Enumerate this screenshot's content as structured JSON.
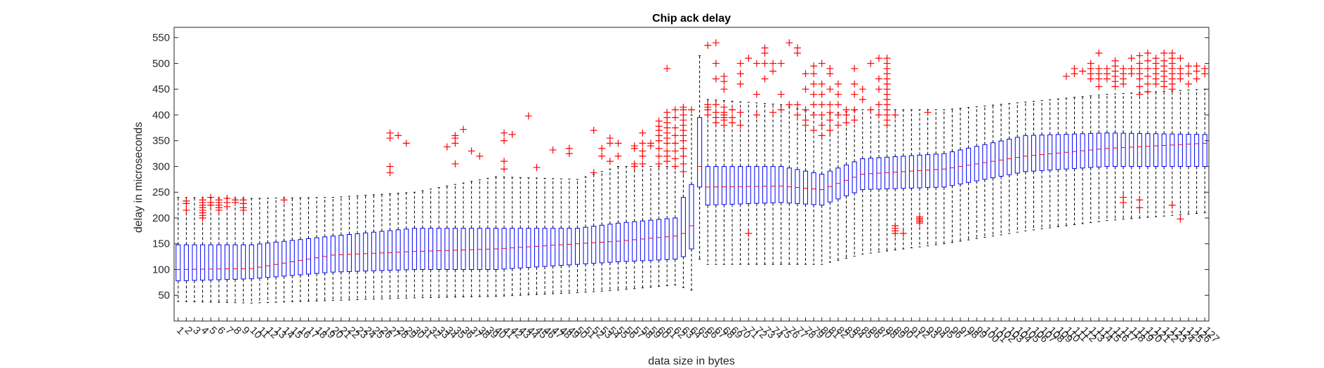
{
  "chart_data": {
    "type": "box",
    "title": "Chip ack delay",
    "xlabel": "data size in bytes",
    "ylabel": "delay in microseconds",
    "ylim": [
      0,
      570
    ],
    "yticks": [
      50,
      100,
      150,
      200,
      250,
      300,
      350,
      400,
      450,
      500,
      550
    ],
    "categories_count": 127,
    "categories_first": 1,
    "colors": {
      "box": "#0000ff",
      "median": "#ff0000",
      "whisker": "#000000",
      "outlier": "#ff0000",
      "axis": "#262626"
    },
    "control_points": [
      {
        "x": 1,
        "q1": 78,
        "median": 100,
        "q3": 148,
        "lo": 38,
        "hi": 240
      },
      {
        "x": 10,
        "q1": 82,
        "median": 102,
        "q3": 148,
        "lo": 35,
        "hi": 238
      },
      {
        "x": 20,
        "q1": 95,
        "median": 128,
        "q3": 165,
        "lo": 40,
        "hi": 240
      },
      {
        "x": 30,
        "q1": 100,
        "median": 135,
        "q3": 180,
        "lo": 45,
        "hi": 250
      },
      {
        "x": 40,
        "q1": 100,
        "median": 140,
        "q3": 180,
        "lo": 48,
        "hi": 280
      },
      {
        "x": 50,
        "q1": 110,
        "median": 150,
        "q3": 180,
        "lo": 55,
        "hi": 275
      },
      {
        "x": 55,
        "q1": 115,
        "median": 155,
        "q3": 190,
        "lo": 60,
        "hi": 300
      },
      {
        "x": 62,
        "q1": 120,
        "median": 165,
        "q3": 200,
        "lo": 70,
        "hi": 300
      },
      {
        "x": 63,
        "q1": 125,
        "median": 170,
        "q3": 240,
        "lo": 65,
        "hi": 380
      },
      {
        "x": 64,
        "q1": 140,
        "median": 185,
        "q3": 265,
        "lo": 60,
        "hi": 400
      },
      {
        "x": 65,
        "q1": 260,
        "median": 300,
        "q3": 395,
        "lo": 120,
        "hi": 515
      },
      {
        "x": 66,
        "q1": 225,
        "median": 260,
        "q3": 300,
        "lo": 110,
        "hi": 430
      },
      {
        "x": 75,
        "q1": 230,
        "median": 262,
        "q3": 300,
        "lo": 110,
        "hi": 420
      },
      {
        "x": 80,
        "q1": 225,
        "median": 255,
        "q3": 285,
        "lo": 110,
        "hi": 400
      },
      {
        "x": 85,
        "q1": 255,
        "median": 285,
        "q3": 315,
        "lo": 130,
        "hi": 410
      },
      {
        "x": 95,
        "q1": 260,
        "median": 295,
        "q3": 325,
        "lo": 150,
        "hi": 410
      },
      {
        "x": 105,
        "q1": 290,
        "median": 320,
        "q3": 360,
        "lo": 175,
        "hi": 425
      },
      {
        "x": 115,
        "q1": 300,
        "median": 335,
        "q3": 365,
        "lo": 195,
        "hi": 440
      },
      {
        "x": 127,
        "q1": 300,
        "median": 345,
        "q3": 362,
        "lo": 210,
        "hi": 450
      }
    ],
    "outliers": [
      {
        "x": 2,
        "values": [
          215,
          228,
          233
        ]
      },
      {
        "x": 4,
        "values": [
          200,
          205,
          210,
          215,
          220,
          225,
          230,
          235
        ]
      },
      {
        "x": 5,
        "values": [
          225,
          230,
          240
        ]
      },
      {
        "x": 6,
        "values": [
          215,
          220,
          225,
          230,
          235
        ]
      },
      {
        "x": 7,
        "values": [
          222,
          230,
          238
        ]
      },
      {
        "x": 8,
        "values": [
          230,
          235
        ]
      },
      {
        "x": 9,
        "values": [
          215,
          220,
          228,
          235
        ]
      },
      {
        "x": 14,
        "values": [
          235
        ]
      },
      {
        "x": 27,
        "values": [
          288,
          300,
          355,
          365
        ]
      },
      {
        "x": 28,
        "values": [
          360
        ]
      },
      {
        "x": 29,
        "values": [
          345
        ]
      },
      {
        "x": 34,
        "values": [
          338
        ]
      },
      {
        "x": 35,
        "values": [
          305,
          345,
          355,
          360
        ]
      },
      {
        "x": 36,
        "values": [
          372
        ]
      },
      {
        "x": 37,
        "values": [
          330
        ]
      },
      {
        "x": 38,
        "values": [
          320
        ]
      },
      {
        "x": 41,
        "values": [
          295,
          310,
          350,
          365
        ]
      },
      {
        "x": 42,
        "values": [
          362
        ]
      },
      {
        "x": 44,
        "values": [
          398
        ]
      },
      {
        "x": 45,
        "values": [
          298
        ]
      },
      {
        "x": 47,
        "values": [
          332
        ]
      },
      {
        "x": 49,
        "values": [
          325,
          335
        ]
      },
      {
        "x": 52,
        "values": [
          288,
          370
        ]
      },
      {
        "x": 53,
        "values": [
          320,
          335
        ]
      },
      {
        "x": 54,
        "values": [
          310,
          345,
          355
        ]
      },
      {
        "x": 55,
        "values": [
          320,
          345
        ]
      },
      {
        "x": 57,
        "values": [
          300,
          305,
          335,
          340
        ]
      },
      {
        "x": 58,
        "values": [
          305,
          320,
          330,
          345,
          365
        ]
      },
      {
        "x": 59,
        "values": [
          340,
          345
        ]
      },
      {
        "x": 60,
        "values": [
          305,
          320,
          335,
          350,
          360,
          370,
          378,
          388
        ]
      },
      {
        "x": 61,
        "values": [
          310,
          320,
          330,
          345,
          355,
          365,
          375,
          385,
          395,
          405,
          490
        ]
      },
      {
        "x": 62,
        "values": [
          300,
          315,
          330,
          345,
          360,
          375,
          395,
          410
        ]
      },
      {
        "x": 63,
        "values": [
          290,
          305,
          320,
          335,
          350,
          360,
          370,
          380,
          390,
          400,
          410,
          415
        ]
      },
      {
        "x": 64,
        "values": [
          410
        ]
      },
      {
        "x": 66,
        "values": [
          400,
          410,
          415,
          420,
          535
        ]
      },
      {
        "x": 67,
        "values": [
          385,
          395,
          405,
          420,
          470,
          500,
          540
        ]
      },
      {
        "x": 68,
        "values": [
          380,
          390,
          395,
          400,
          405,
          415,
          450,
          465,
          475
        ]
      },
      {
        "x": 69,
        "values": [
          385,
          395,
          410
        ]
      },
      {
        "x": 70,
        "values": [
          380,
          405,
          460,
          480,
          500
        ]
      },
      {
        "x": 71,
        "values": [
          170,
          510
        ]
      },
      {
        "x": 72,
        "values": [
          400,
          440,
          500
        ]
      },
      {
        "x": 73,
        "values": [
          470,
          500,
          520,
          530
        ]
      },
      {
        "x": 74,
        "values": [
          405,
          485,
          500
        ]
      },
      {
        "x": 75,
        "values": [
          410,
          440,
          500
        ]
      },
      {
        "x": 76,
        "values": [
          420,
          540
        ]
      },
      {
        "x": 77,
        "values": [
          400,
          420,
          520,
          530
        ]
      },
      {
        "x": 78,
        "values": [
          380,
          390,
          410,
          450,
          480
        ]
      },
      {
        "x": 79,
        "values": [
          370,
          400,
          420,
          440,
          460,
          480,
          495
        ]
      },
      {
        "x": 80,
        "values": [
          360,
          380,
          400,
          420,
          440,
          460,
          500
        ]
      },
      {
        "x": 81,
        "values": [
          370,
          390,
          405,
          420,
          450,
          480,
          490
        ]
      },
      {
        "x": 82,
        "values": [
          380,
          400,
          420,
          440,
          460
        ]
      },
      {
        "x": 83,
        "values": [
          385,
          400,
          410
        ]
      },
      {
        "x": 84,
        "values": [
          390,
          410,
          440,
          460,
          490
        ]
      },
      {
        "x": 85,
        "values": [
          430,
          450
        ]
      },
      {
        "x": 86,
        "values": [
          410,
          500
        ]
      },
      {
        "x": 87,
        "values": [
          400,
          420,
          450,
          470,
          510
        ]
      },
      {
        "x": 88,
        "values": [
          380,
          390,
          400,
          410,
          420,
          430,
          440,
          450,
          460,
          470,
          480,
          490,
          500,
          510
        ]
      },
      {
        "x": 89,
        "values": [
          170,
          175,
          180,
          185,
          400
        ]
      },
      {
        "x": 90,
        "values": [
          170
        ]
      },
      {
        "x": 92,
        "values": [
          190,
          193,
          196,
          199,
          202
        ]
      },
      {
        "x": 93,
        "values": [
          405
        ]
      },
      {
        "x": 110,
        "values": [
          475
        ]
      },
      {
        "x": 111,
        "values": [
          480,
          490
        ]
      },
      {
        "x": 112,
        "values": [
          485
        ]
      },
      {
        "x": 113,
        "values": [
          470,
          480,
          490,
          500
        ]
      },
      {
        "x": 114,
        "values": [
          455,
          470,
          480,
          490,
          520
        ]
      },
      {
        "x": 115,
        "values": [
          470,
          480,
          490
        ]
      },
      {
        "x": 116,
        "values": [
          455,
          465,
          475,
          485,
          495,
          505
        ]
      },
      {
        "x": 117,
        "values": [
          230,
          240,
          460,
          470,
          480,
          490
        ]
      },
      {
        "x": 118,
        "values": [
          480,
          490,
          510
        ]
      },
      {
        "x": 119,
        "values": [
          220,
          235,
          440,
          455,
          470,
          480,
          490,
          500,
          515
        ]
      },
      {
        "x": 120,
        "values": [
          445,
          460,
          475,
          490,
          505,
          520
        ]
      },
      {
        "x": 121,
        "values": [
          460,
          470,
          480,
          490,
          500,
          510
        ]
      },
      {
        "x": 122,
        "values": [
          455,
          465,
          475,
          485,
          495,
          505,
          520
        ]
      },
      {
        "x": 123,
        "values": [
          225,
          450,
          460,
          470,
          480,
          490,
          500,
          510,
          520
        ]
      },
      {
        "x": 124,
        "values": [
          198,
          470,
          480,
          490,
          510
        ]
      },
      {
        "x": 125,
        "values": [
          460,
          480,
          495
        ]
      },
      {
        "x": 126,
        "values": [
          470,
          485,
          495
        ]
      },
      {
        "x": 127,
        "values": [
          480,
          490
        ]
      }
    ]
  }
}
